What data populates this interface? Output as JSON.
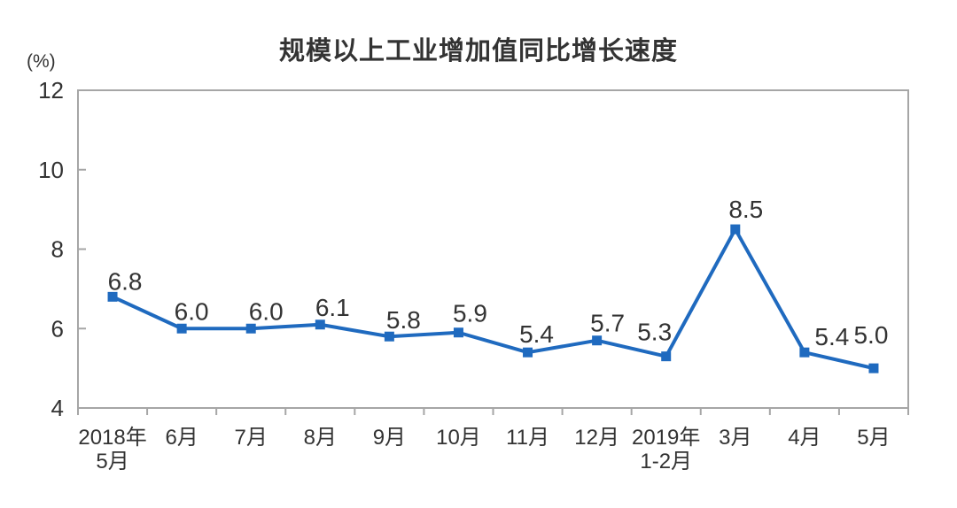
{
  "chart_data": {
    "type": "line",
    "title": "规模以上工业增加值同比增长速度",
    "unit_label": "(%)",
    "categories": [
      "2018年\n5月",
      "6月",
      "7月",
      "8月",
      "9月",
      "10月",
      "11月",
      "12月",
      "2019年\n1-2月",
      "3月",
      "4月",
      "5月"
    ],
    "values": [
      6.8,
      6.0,
      6.0,
      6.1,
      5.8,
      5.9,
      5.4,
      5.7,
      5.3,
      8.5,
      5.4,
      5.0
    ],
    "data_labels": [
      "6.8",
      "6.0",
      "6.0",
      "6.1",
      "5.8",
      "5.9",
      "5.4",
      "5.7",
      "5.3",
      "8.5",
      "5.4",
      "5.0"
    ],
    "xlabel": "",
    "ylabel": "(%)",
    "yticks": [
      4,
      6,
      8,
      10,
      12
    ],
    "ylim": [
      4,
      12
    ],
    "grid": false,
    "legend": "none",
    "marker": "square",
    "series_color": "#1f6abf",
    "axis_color": "#a6a6a6",
    "text_color": "#333333"
  }
}
